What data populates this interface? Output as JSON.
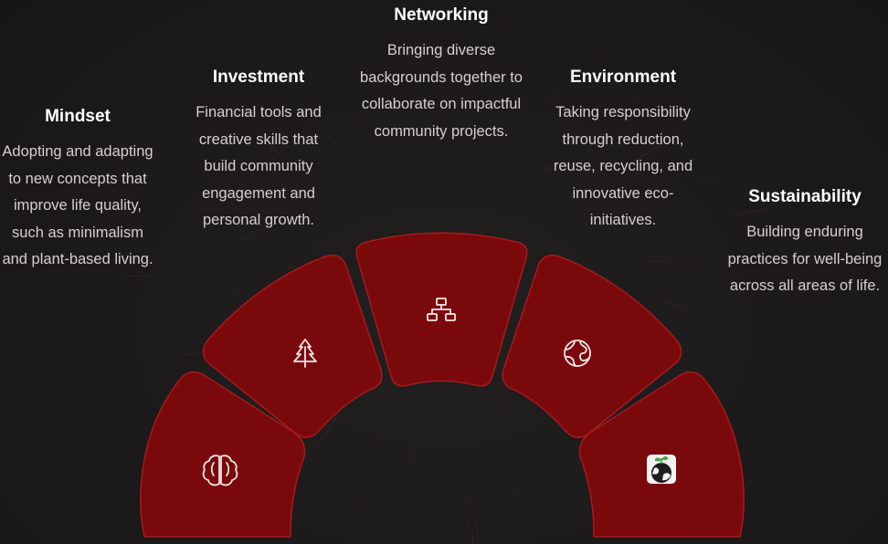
{
  "colors": {
    "background": "#1b1919",
    "segment_fill": "#7a090b",
    "segment_stroke": "#a51a1f",
    "title_text": "#ffffff",
    "body_text": "#d6d0d0",
    "icon": "#f1e9e9"
  },
  "items": [
    {
      "title": "Mindset",
      "description": "Adopting and adapting to new concepts that improve life quality, such as minimalism and plant-based living.",
      "icon": "brain-icon"
    },
    {
      "title": "Investment",
      "description": "Financial tools and creative skills that build community engagement and personal growth.",
      "icon": "tree-icon"
    },
    {
      "title": "Networking",
      "description": "Bringing diverse backgrounds together to collaborate on impactful community projects.",
      "icon": "network-icon"
    },
    {
      "title": "Environment",
      "description": "Taking responsibility through reduction, reuse, recycling, and innovative eco-initiatives.",
      "icon": "globe-icon"
    },
    {
      "title": "Sustainability",
      "description": "Building enduring practices for well-being across all areas of life.",
      "icon": "earth-sprout-icon"
    }
  ]
}
